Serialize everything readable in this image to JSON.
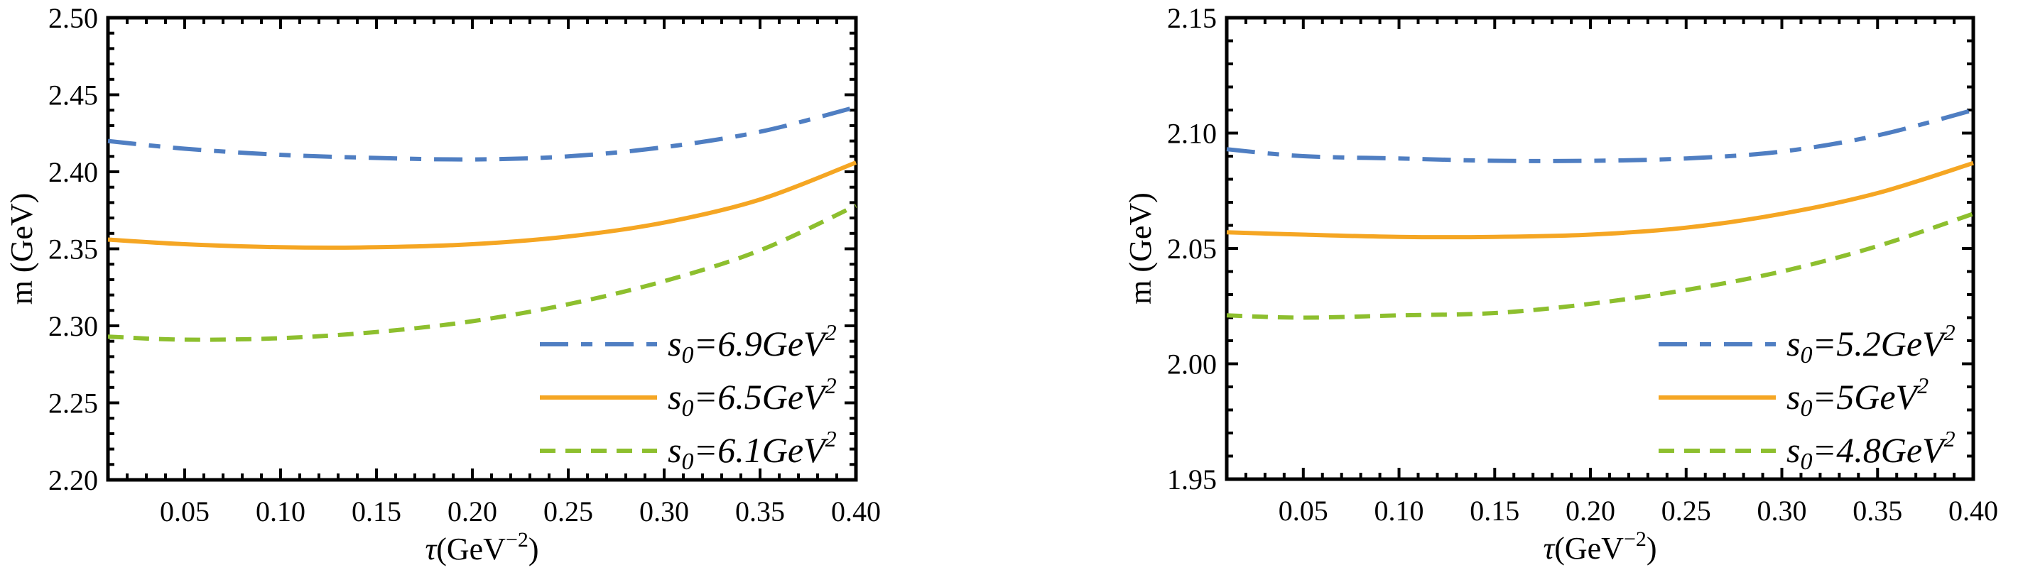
{
  "chart_data": [
    {
      "type": "line",
      "title": "",
      "xlabel": "τ(GeV⁻²)",
      "xlabel_base": "τ(GeV",
      "xlabel_sup": "−2",
      "xlabel_end": ")",
      "ylabel": "m (GeV)",
      "xlim": [
        0.01,
        0.4
      ],
      "ylim": [
        2.2,
        2.5
      ],
      "grid": false,
      "legend_position": "bottom-right",
      "x_ticks": [
        "0.05",
        "0.10",
        "0.15",
        "0.20",
        "0.25",
        "0.30",
        "0.35",
        "0.40"
      ],
      "y_ticks": [
        "2.20",
        "2.25",
        "2.30",
        "2.35",
        "2.40",
        "2.45",
        "2.50"
      ],
      "x": [
        0.01,
        0.05,
        0.1,
        0.15,
        0.2,
        0.25,
        0.3,
        0.35,
        0.4
      ],
      "series": [
        {
          "name": "s0=6.9GeV2",
          "label_main": "s",
          "label_sub": "0",
          "label_rest": "=6.9GeV",
          "label_sup": "2",
          "style": "dashdot",
          "color": "#4f7ec2",
          "values": [
            2.42,
            2.415,
            2.411,
            2.409,
            2.408,
            2.41,
            2.416,
            2.426,
            2.442
          ]
        },
        {
          "name": "s0=6.5GeV2",
          "label_main": "s",
          "label_sub": "0",
          "label_rest": "=6.5GeV",
          "label_sup": "2",
          "style": "solid",
          "color": "#f5a623",
          "values": [
            2.356,
            2.353,
            2.351,
            2.351,
            2.353,
            2.358,
            2.367,
            2.382,
            2.406
          ]
        },
        {
          "name": "s0=6.1GeV2",
          "label_main": "s",
          "label_sub": "0",
          "label_rest": "=6.1GeV",
          "label_sup": "2",
          "style": "dashed",
          "color": "#8dbf2e",
          "values": [
            2.293,
            2.291,
            2.292,
            2.296,
            2.303,
            2.314,
            2.329,
            2.349,
            2.378
          ]
        }
      ]
    },
    {
      "type": "line",
      "title": "",
      "xlabel": "τ(GeV⁻²)",
      "xlabel_base": "τ(GeV",
      "xlabel_sup": "−2",
      "xlabel_end": ")",
      "ylabel": "m (GeV)",
      "xlim": [
        0.01,
        0.4
      ],
      "ylim": [
        1.95,
        2.15
      ],
      "grid": false,
      "legend_position": "bottom-right",
      "x_ticks": [
        "0.05",
        "0.10",
        "0.15",
        "0.20",
        "0.25",
        "0.30",
        "0.35",
        "0.40"
      ],
      "y_ticks": [
        "1.95",
        "2.00",
        "2.05",
        "2.10",
        "2.15"
      ],
      "x": [
        0.01,
        0.05,
        0.1,
        0.15,
        0.2,
        0.25,
        0.3,
        0.35,
        0.4
      ],
      "series": [
        {
          "name": "s0=5.2GeV2",
          "label_main": "s",
          "label_sub": "0",
          "label_rest": "=5.2GeV",
          "label_sup": "2",
          "style": "dashdot",
          "color": "#4f7ec2",
          "values": [
            2.093,
            2.09,
            2.089,
            2.088,
            2.088,
            2.089,
            2.092,
            2.099,
            2.11
          ]
        },
        {
          "name": "s0=5GeV2",
          "label_main": "s",
          "label_sub": "0",
          "label_rest": "=5GeV",
          "label_sup": "2",
          "style": "solid",
          "color": "#f5a623",
          "values": [
            2.057,
            2.056,
            2.055,
            2.055,
            2.056,
            2.059,
            2.065,
            2.074,
            2.087
          ]
        },
        {
          "name": "s0=4.8GeV2",
          "label_main": "s",
          "label_sub": "0",
          "label_rest": "=4.8GeV",
          "label_sup": "2",
          "style": "dashed",
          "color": "#8dbf2e",
          "values": [
            2.021,
            2.02,
            2.021,
            2.022,
            2.026,
            2.032,
            2.04,
            2.051,
            2.065
          ]
        }
      ]
    }
  ]
}
